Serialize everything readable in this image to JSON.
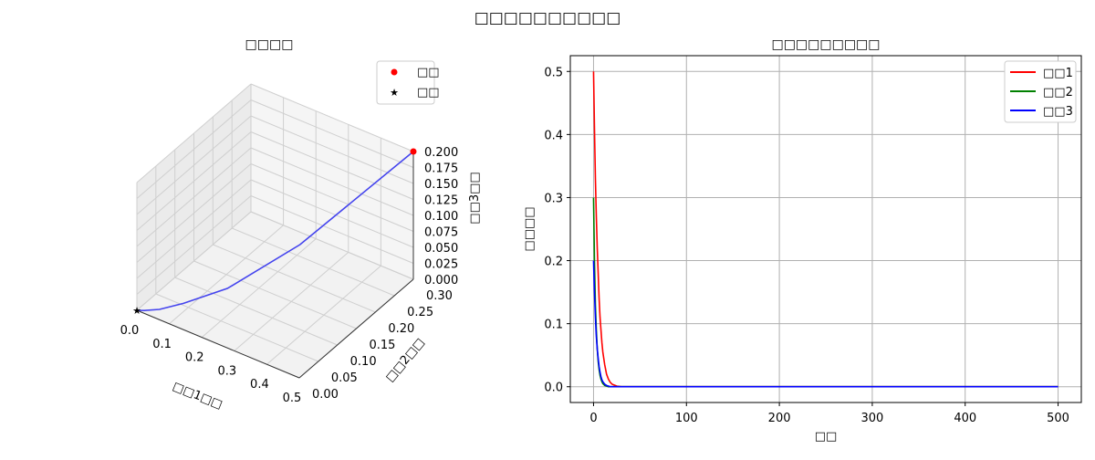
{
  "figure": {
    "suptitle": "□□□□□□□□□□"
  },
  "chart_data": [
    {
      "type": "line3d",
      "title": "□□□□",
      "xlabel": "□□1□□",
      "ylabel": "□□2□□",
      "zlabel": "□□3□□",
      "xlim": [
        0,
        0.5
      ],
      "ylim": [
        0,
        0.3
      ],
      "zlim": [
        0,
        0.2
      ],
      "xticks": [
        "0.0",
        "0.1",
        "0.2",
        "0.3",
        "0.4",
        "0.5"
      ],
      "yticks": [
        "0.00",
        "0.05",
        "0.10",
        "0.15",
        "0.20",
        "0.25",
        "0.30"
      ],
      "zticks": [
        "0.000",
        "0.025",
        "0.050",
        "0.075",
        "0.100",
        "0.125",
        "0.150",
        "0.175",
        "0.200"
      ],
      "trajectory": {
        "x": [
          0.5,
          0.35,
          0.22,
          0.12,
          0.06,
          0.02,
          0.0
        ],
        "y": [
          0.3,
          0.13,
          0.05,
          0.02,
          0.008,
          0.002,
          0.0
        ],
        "z": [
          0.2,
          0.11,
          0.055,
          0.026,
          0.01,
          0.003,
          0.0
        ],
        "color": "#4444ee"
      },
      "markers": [
        {
          "name": "□□",
          "x": 0.5,
          "y": 0.3,
          "z": 0.2,
          "shape": "circle",
          "color": "#ff0000"
        },
        {
          "name": "□□",
          "x": 0.0,
          "y": 0.0,
          "z": 0.0,
          "shape": "star",
          "color": "#008000"
        }
      ],
      "legend": {
        "position": "top-right",
        "entries": [
          "□□",
          "□□"
        ]
      },
      "grid": true
    },
    {
      "type": "line",
      "title": "□□□□□□□□□",
      "xlabel": "□□",
      "ylabel": "□□□□",
      "xlim": [
        -25,
        525
      ],
      "ylim": [
        -0.025,
        0.525
      ],
      "xticks": [
        0,
        100,
        200,
        300,
        400,
        500
      ],
      "yticks": [
        0.0,
        0.1,
        0.2,
        0.3,
        0.4,
        0.5
      ],
      "grid": true,
      "legend": {
        "position": "top-right"
      },
      "x": [
        0,
        1,
        2,
        3,
        4,
        5,
        6,
        7,
        8,
        9,
        10,
        12,
        14,
        16,
        18,
        20,
        25,
        30,
        50,
        100,
        200,
        300,
        400,
        500
      ],
      "series": [
        {
          "name": "□□1",
          "color": "#ff0000",
          "values": [
            0.5,
            0.41,
            0.33,
            0.27,
            0.22,
            0.18,
            0.14,
            0.11,
            0.09,
            0.07,
            0.055,
            0.035,
            0.02,
            0.012,
            0.007,
            0.004,
            0.001,
            0.0,
            0.0,
            0.0,
            0.0,
            0.0,
            0.0,
            0.0
          ]
        },
        {
          "name": "□□2",
          "color": "#008000",
          "values": [
            0.3,
            0.2,
            0.13,
            0.09,
            0.06,
            0.04,
            0.027,
            0.018,
            0.012,
            0.008,
            0.005,
            0.002,
            0.001,
            0.0,
            0.0,
            0.0,
            0.0,
            0.0,
            0.0,
            0.0,
            0.0,
            0.0,
            0.0,
            0.0
          ]
        },
        {
          "name": "□□3",
          "color": "#0000ff",
          "values": [
            0.2,
            0.15,
            0.11,
            0.08,
            0.06,
            0.045,
            0.032,
            0.023,
            0.016,
            0.011,
            0.008,
            0.004,
            0.002,
            0.001,
            0.0,
            0.0,
            0.0,
            0.0,
            0.0,
            0.0,
            0.0,
            0.0,
            0.0,
            0.0
          ]
        }
      ]
    }
  ]
}
